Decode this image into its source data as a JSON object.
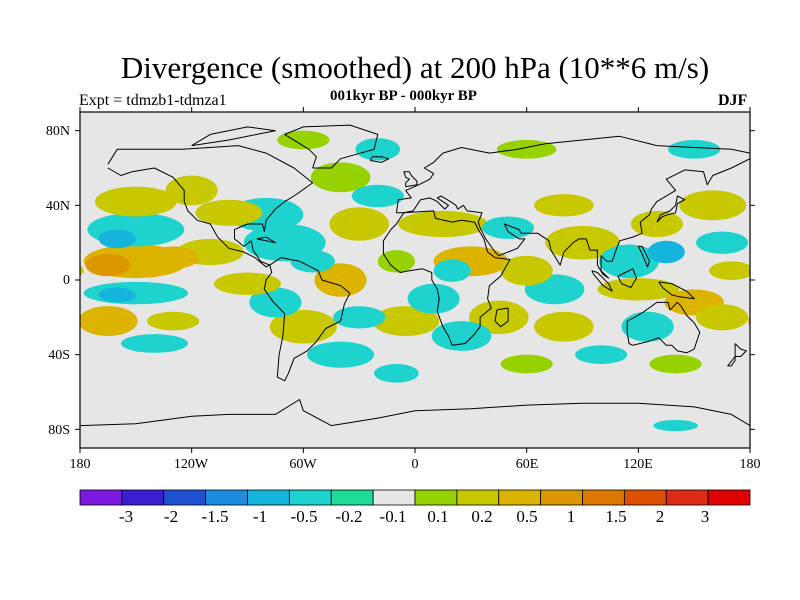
{
  "title": "Divergence (smoothed) at 200 hPa (10**6 m/s)",
  "experiment": "Expt = tdmzb1-tdmza1",
  "period": "001kyr BP - 000kyr BP",
  "season": "DJF",
  "map": {
    "projection": "cylindrical-equidistant",
    "lon_range": [
      -180,
      180
    ],
    "lat_range": [
      -90,
      90
    ],
    "background_color": "#e6e6e6",
    "coastline_color": "#000000",
    "lat_ticks": [
      {
        "value": 80,
        "label": "80N"
      },
      {
        "value": 40,
        "label": "40N"
      },
      {
        "value": 0,
        "label": "0"
      },
      {
        "value": -40,
        "label": "40S"
      },
      {
        "value": -80,
        "label": "80S"
      }
    ],
    "lon_ticks": [
      {
        "value": -180,
        "label": "180"
      },
      {
        "value": -120,
        "label": "120W"
      },
      {
        "value": -60,
        "label": "60W"
      },
      {
        "value": 0,
        "label": "0"
      },
      {
        "value": 60,
        "label": "60E"
      },
      {
        "value": 120,
        "label": "120E"
      },
      {
        "value": 180,
        "label": "180"
      }
    ]
  },
  "colorbar": {
    "colors": [
      "#7d18e0",
      "#3a1fd2",
      "#1e50d2",
      "#1e8cdc",
      "#14b4dc",
      "#1ed2cd",
      "#1edc96",
      "#e6e6e6",
      "#96d200",
      "#c8c800",
      "#dcb400",
      "#dc9600",
      "#dc7800",
      "#dc5000",
      "#dc2d14",
      "#e10000"
    ],
    "labels": [
      "-3",
      "-2",
      "-1.5",
      "-1",
      "-0.5",
      "-0.2",
      "-0.1",
      "0.1",
      "0.2",
      "0.5",
      "1",
      "1.5",
      "2",
      "3"
    ]
  },
  "chart_data": {
    "type": "filled-contour-map",
    "variable": "Divergence (smoothed) at 200 hPa",
    "units": "10**6 m/s",
    "levels": [
      -3,
      -2,
      -1.5,
      -1,
      -0.5,
      -0.2,
      -0.1,
      0.1,
      0.2,
      0.5,
      1,
      1.5,
      2,
      3
    ],
    "blobs": [
      {
        "lon": -150,
        "lat": 10,
        "rx": 28,
        "ry": 9,
        "value": 1.0
      },
      {
        "lon": -165,
        "lat": 8,
        "rx": 12,
        "ry": 6,
        "value": 1.2
      },
      {
        "lon": -130,
        "lat": 12,
        "rx": 14,
        "ry": 6,
        "value": 0.7
      },
      {
        "lon": -150,
        "lat": 27,
        "rx": 26,
        "ry": 9,
        "value": -0.4
      },
      {
        "lon": -160,
        "lat": 22,
        "rx": 10,
        "ry": 5,
        "value": -0.7
      },
      {
        "lon": -150,
        "lat": -7,
        "rx": 28,
        "ry": 6,
        "value": -0.4
      },
      {
        "lon": -160,
        "lat": -8,
        "rx": 10,
        "ry": 4,
        "value": -0.7
      },
      {
        "lon": -165,
        "lat": -22,
        "rx": 16,
        "ry": 8,
        "value": 0.9
      },
      {
        "lon": -130,
        "lat": -22,
        "rx": 14,
        "ry": 5,
        "value": 0.3
      },
      {
        "lon": -140,
        "lat": -34,
        "rx": 18,
        "ry": 5,
        "value": -0.3
      },
      {
        "lon": -150,
        "lat": 42,
        "rx": 22,
        "ry": 8,
        "value": 0.3
      },
      {
        "lon": -120,
        "lat": 48,
        "rx": 14,
        "ry": 8,
        "value": 0.3
      },
      {
        "lon": -100,
        "lat": 36,
        "rx": 18,
        "ry": 7,
        "value": 0.3
      },
      {
        "lon": -80,
        "lat": 35,
        "rx": 20,
        "ry": 9,
        "value": -0.4
      },
      {
        "lon": -70,
        "lat": 20,
        "rx": 22,
        "ry": 10,
        "value": -0.3
      },
      {
        "lon": -110,
        "lat": 15,
        "rx": 18,
        "ry": 7,
        "value": 0.4
      },
      {
        "lon": -90,
        "lat": -2,
        "rx": 18,
        "ry": 6,
        "value": 0.5
      },
      {
        "lon": -75,
        "lat": -12,
        "rx": 14,
        "ry": 8,
        "value": -0.3
      },
      {
        "lon": -60,
        "lat": -25,
        "rx": 18,
        "ry": 9,
        "value": 0.4
      },
      {
        "lon": -40,
        "lat": 0,
        "rx": 14,
        "ry": 9,
        "value": 0.7
      },
      {
        "lon": -55,
        "lat": 10,
        "rx": 12,
        "ry": 6,
        "value": -0.3
      },
      {
        "lon": -30,
        "lat": 30,
        "rx": 16,
        "ry": 9,
        "value": 0.4
      },
      {
        "lon": -40,
        "lat": 55,
        "rx": 16,
        "ry": 8,
        "value": 0.2
      },
      {
        "lon": -20,
        "lat": 45,
        "rx": 14,
        "ry": 6,
        "value": -0.2
      },
      {
        "lon": -40,
        "lat": -40,
        "rx": 18,
        "ry": 7,
        "value": -0.3
      },
      {
        "lon": -30,
        "lat": -20,
        "rx": 14,
        "ry": 6,
        "value": -0.2
      },
      {
        "lon": -5,
        "lat": -22,
        "rx": 18,
        "ry": 8,
        "value": 0.4
      },
      {
        "lon": -10,
        "lat": 10,
        "rx": 10,
        "ry": 6,
        "value": 0.2
      },
      {
        "lon": 15,
        "lat": 30,
        "rx": 24,
        "ry": 7,
        "value": 0.3
      },
      {
        "lon": 30,
        "lat": 10,
        "rx": 20,
        "ry": 8,
        "value": 0.6
      },
      {
        "lon": 20,
        "lat": 5,
        "rx": 10,
        "ry": 6,
        "value": -0.3
      },
      {
        "lon": 10,
        "lat": -10,
        "rx": 14,
        "ry": 8,
        "value": -0.3
      },
      {
        "lon": 25,
        "lat": -30,
        "rx": 16,
        "ry": 8,
        "value": -0.3
      },
      {
        "lon": 45,
        "lat": -20,
        "rx": 16,
        "ry": 9,
        "value": 0.4
      },
      {
        "lon": 50,
        "lat": 28,
        "rx": 14,
        "ry": 6,
        "value": -0.3
      },
      {
        "lon": 60,
        "lat": 5,
        "rx": 14,
        "ry": 8,
        "value": 0.5
      },
      {
        "lon": 75,
        "lat": -5,
        "rx": 16,
        "ry": 8,
        "value": -0.3
      },
      {
        "lon": 90,
        "lat": 20,
        "rx": 20,
        "ry": 9,
        "value": 0.4
      },
      {
        "lon": 80,
        "lat": 40,
        "rx": 16,
        "ry": 6,
        "value": 0.3
      },
      {
        "lon": 80,
        "lat": -25,
        "rx": 16,
        "ry": 8,
        "value": 0.3
      },
      {
        "lon": 115,
        "lat": 10,
        "rx": 16,
        "ry": 9,
        "value": -0.4
      },
      {
        "lon": 135,
        "lat": 15,
        "rx": 10,
        "ry": 6,
        "value": -0.7
      },
      {
        "lon": 130,
        "lat": 30,
        "rx": 14,
        "ry": 7,
        "value": 0.4
      },
      {
        "lon": 120,
        "lat": -5,
        "rx": 22,
        "ry": 6,
        "value": 0.5
      },
      {
        "lon": 150,
        "lat": -12,
        "rx": 16,
        "ry": 7,
        "value": 0.7
      },
      {
        "lon": 125,
        "lat": -25,
        "rx": 14,
        "ry": 8,
        "value": -0.3
      },
      {
        "lon": 160,
        "lat": 40,
        "rx": 18,
        "ry": 8,
        "value": 0.3
      },
      {
        "lon": 165,
        "lat": 20,
        "rx": 14,
        "ry": 6,
        "value": -0.3
      },
      {
        "lon": 170,
        "lat": 5,
        "rx": 12,
        "ry": 5,
        "value": 0.3
      },
      {
        "lon": 165,
        "lat": -20,
        "rx": 14,
        "ry": 7,
        "value": 0.3
      },
      {
        "lon": 100,
        "lat": -40,
        "rx": 14,
        "ry": 5,
        "value": -0.2
      },
      {
        "lon": 60,
        "lat": -45,
        "rx": 14,
        "ry": 5,
        "value": 0.2
      },
      {
        "lon": 140,
        "lat": -45,
        "rx": 14,
        "ry": 5,
        "value": 0.2
      },
      {
        "lon": -10,
        "lat": -50,
        "rx": 12,
        "ry": 5,
        "value": -0.2
      },
      {
        "lon": 140,
        "lat": -78,
        "rx": 12,
        "ry": 3,
        "value": -0.2
      },
      {
        "lon": -60,
        "lat": 75,
        "rx": 14,
        "ry": 5,
        "value": 0.2
      },
      {
        "lon": -20,
        "lat": 70,
        "rx": 12,
        "ry": 6,
        "value": -0.2
      },
      {
        "lon": 60,
        "lat": 70,
        "rx": 16,
        "ry": 5,
        "value": 0.2
      },
      {
        "lon": 150,
        "lat": 70,
        "rx": 14,
        "ry": 5,
        "value": -0.2
      }
    ]
  }
}
